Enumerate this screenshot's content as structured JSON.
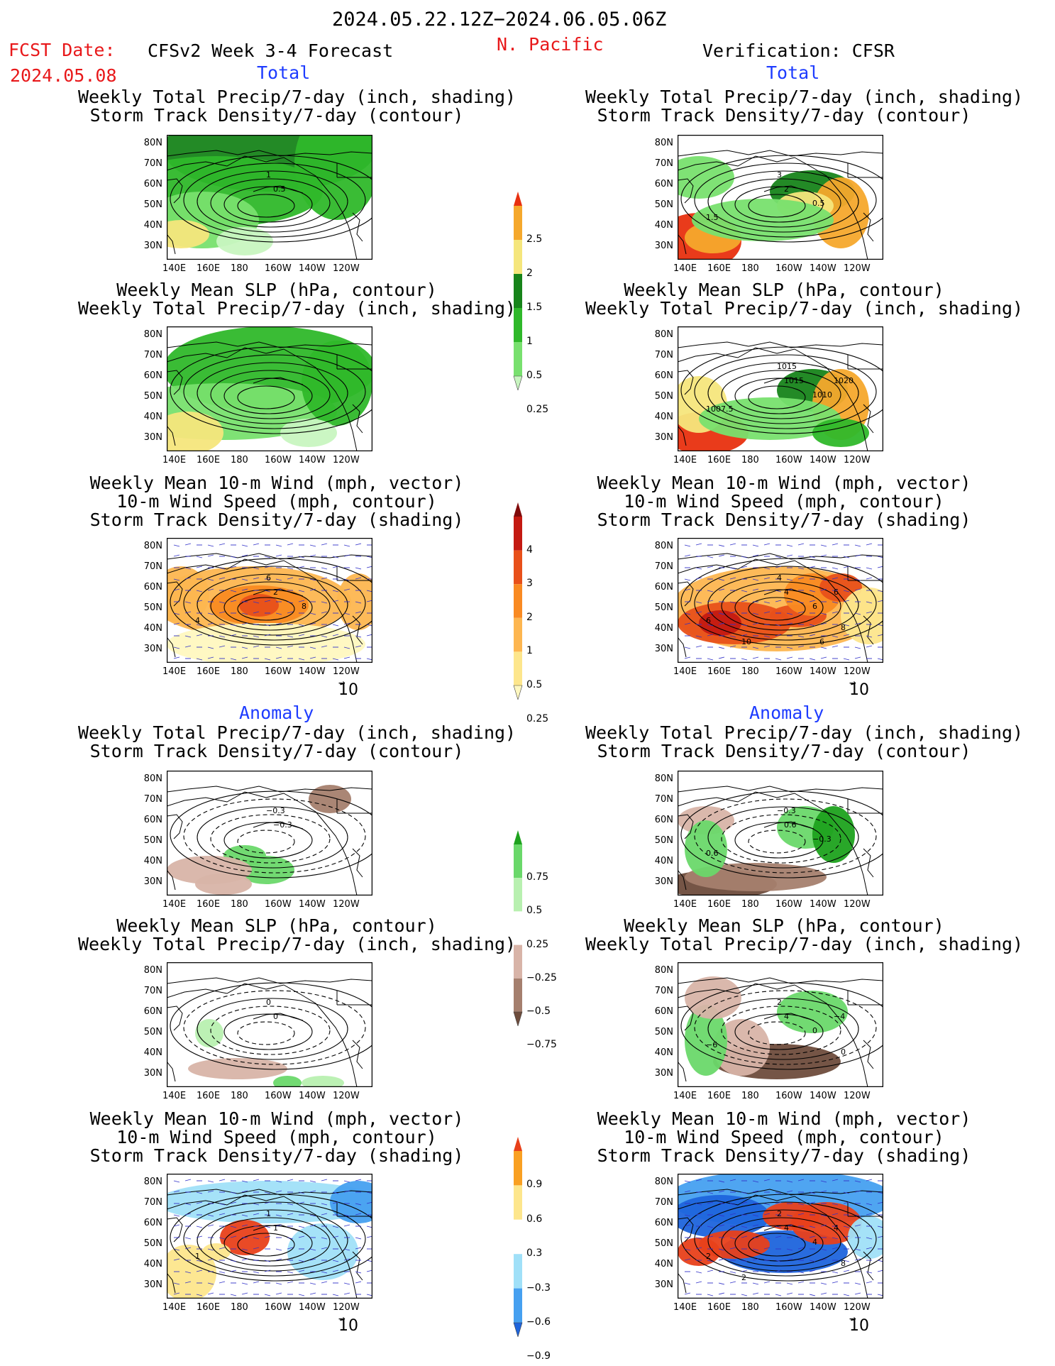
{
  "header": {
    "period": "2024.05.22.12Z−2024.06.05.06Z",
    "fcst_label": "FCST Date:",
    "fcst_date": "2024.05.08",
    "model": "CFSv2 Week 3-4 Forecast",
    "region": "N. Pacific",
    "verification": "Verification: CFSR"
  },
  "sections": {
    "total": "Total",
    "anomaly": "Anomaly"
  },
  "titles": {
    "precip_storm": [
      "Weekly Total Precip/7-day (inch, shading)",
      "Storm Track Density/7-day (contour)"
    ],
    "slp_precip": [
      "Weekly Mean SLP (hPa, contour)",
      "Weekly Total Precip/7-day (inch, shading)"
    ],
    "wind_storm": [
      "Weekly Mean 10-m Wind (mph, vector)",
      "10-m Wind Speed (mph, contour)",
      "Storm Track Density/7-day (shading)"
    ]
  },
  "axes": {
    "lat": [
      "80N",
      "70N",
      "60N",
      "50N",
      "40N",
      "30N"
    ],
    "lon": [
      "140E",
      "160E",
      "180",
      "160W",
      "140W",
      "120W"
    ]
  },
  "vector_ref": "10",
  "colorbars": {
    "precip_total": [
      "2.5",
      "2",
      "1.5",
      "1",
      "0.5",
      "0.25"
    ],
    "storm_total": [
      "4",
      "3",
      "2",
      "1",
      "0.5",
      "0.25"
    ],
    "precip_anom": [
      "0.75",
      "0.5",
      "0.25",
      "−0.25",
      "−0.5",
      "−0.75"
    ],
    "storm_anom": [
      "0.9",
      "0.6",
      "0.3",
      "−0.3",
      "−0.6",
      "−0.9"
    ]
  },
  "contour_labels": {
    "fc_precip": [
      "1",
      "0.5"
    ],
    "cf_precip": [
      "3",
      "2",
      "1.5",
      "0.5"
    ],
    "cf_slp": [
      "1015",
      "1015",
      "1007.5",
      "1010",
      "1020"
    ],
    "fc_wind": [
      "6",
      "2",
      "4",
      "8"
    ],
    "cf_wind": [
      "4",
      "4",
      "6",
      "6",
      "6",
      "8",
      "10",
      "6"
    ],
    "fc_panom": [
      "−0.3",
      "−0.3"
    ],
    "cf_panom": [
      "−0.3",
      "0.6",
      "0.6",
      "−0.3"
    ],
    "fc_slpanom": [
      "0",
      "0"
    ],
    "cf_slpanom": [
      "2",
      "4",
      "−6",
      "0",
      "−4",
      "0"
    ],
    "fc_windanom": [
      "1",
      "1",
      "1"
    ],
    "cf_windanom": [
      "2",
      "4",
      "2",
      "4",
      "4",
      "8",
      "2"
    ]
  },
  "colors": {
    "precip": [
      "#c8f5c0",
      "#78e06e",
      "#2fb82a",
      "#17841a",
      "#f5e67c",
      "#f5a82c",
      "#e8300f"
    ],
    "storm": [
      "#fff8c0",
      "#fde68c",
      "#fdb650",
      "#f98a22",
      "#e8501a",
      "#c41a12",
      "#800a0a"
    ],
    "precip_anom": [
      "#6e4c3c",
      "#a57f6e",
      "#d8b4a8",
      "#ffffff",
      "#b8f0b0",
      "#6ad86a",
      "#1ea21e"
    ],
    "storm_anom": [
      "#1e64dc",
      "#46a0f0",
      "#a0e0f8",
      "#ffffff",
      "#fde68c",
      "#f9a022",
      "#e8401a"
    ],
    "title_red": "#e8181a",
    "section_blue": "#1e3cff"
  }
}
